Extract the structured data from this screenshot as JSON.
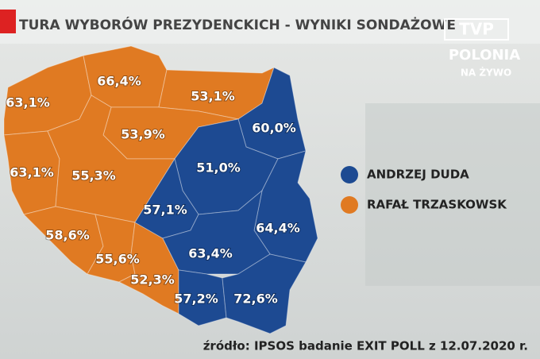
{
  "header": {
    "title": "TURA WYBORÓW PREZYDENCKICH - WYNIKI SONDAŻOWE"
  },
  "logo": {
    "brand": "TVP",
    "channel": "POLONIA",
    "live": "NA ŻYWO"
  },
  "legend": [
    {
      "name": "ANDRZEJ DUDA",
      "color": "#1d4a92"
    },
    {
      "name": "RAFAŁ TRZASKOWSK",
      "color": "#e07a22"
    }
  ],
  "regions": [
    {
      "label": "63,1%",
      "color": "#e07a22"
    },
    {
      "label": "66,4%",
      "color": "#e07a22"
    },
    {
      "label": "53,1%",
      "color": "#e07a22"
    },
    {
      "label": "53,9%",
      "color": "#e07a22"
    },
    {
      "label": "63,1%",
      "color": "#e07a22"
    },
    {
      "label": "55,3%",
      "color": "#e07a22"
    },
    {
      "label": "58,6%",
      "color": "#e07a22"
    },
    {
      "label": "55,6%",
      "color": "#e07a22"
    },
    {
      "label": "52,3%",
      "color": "#e07a22"
    },
    {
      "label": "60,0%",
      "color": "#1d4a92"
    },
    {
      "label": "51,0%",
      "color": "#1d4a92"
    },
    {
      "label": "57,1%",
      "color": "#1d4a92"
    },
    {
      "label": "64,4%",
      "color": "#1d4a92"
    },
    {
      "label": "63,4%",
      "color": "#1d4a92"
    },
    {
      "label": "57,2%",
      "color": "#1d4a92"
    },
    {
      "label": "72,6%",
      "color": "#1d4a92"
    }
  ],
  "footer": {
    "source": "źródło: IPSOS badanie EXIT POLL z 12.07.2020 r."
  }
}
